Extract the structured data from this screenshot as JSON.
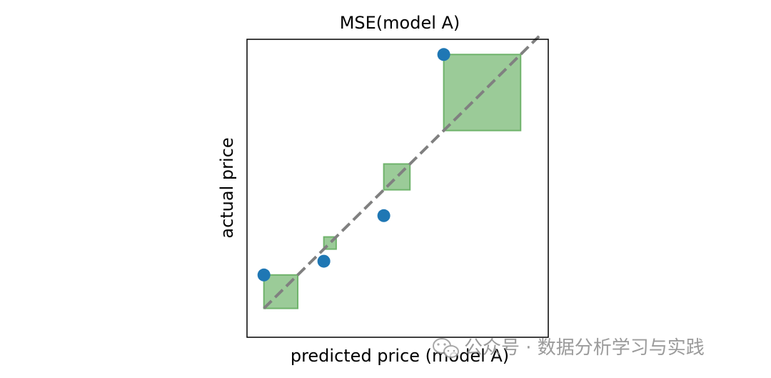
{
  "chart_data": {
    "type": "scatter",
    "title": "MSE(model A)",
    "xlabel": "predicted price (model A)",
    "ylabel": "actual price",
    "xlim": [
      0.8,
      10.6
    ],
    "ylim": [
      0.4,
      10.2
    ],
    "grid": false,
    "show_ticks": false,
    "points": [
      {
        "x": 1.35,
        "y": 2.45
      },
      {
        "x": 3.3,
        "y": 2.9
      },
      {
        "x": 5.25,
        "y": 4.4
      },
      {
        "x": 7.2,
        "y": 9.7
      }
    ],
    "reference_line": {
      "from": [
        1.35,
        1.35
      ],
      "to": [
        10.3,
        10.3
      ],
      "style": "dashed",
      "color": "#808080"
    },
    "error_squares_note": "square side = |predicted - actual|",
    "colors": {
      "points": "#1f77b4",
      "squares_fill": "#9bcb98",
      "squares_edge": "#6fb36b",
      "reference_line": "#808080"
    }
  },
  "watermark": {
    "icon": "wechat-icon",
    "text": "公众号 · 数据分析学习与实践"
  }
}
